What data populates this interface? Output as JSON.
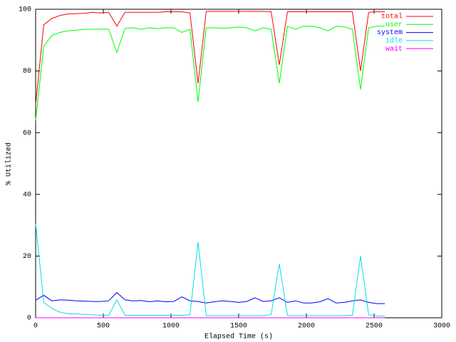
{
  "chart_data": {
    "type": "line",
    "x_label": "Elapsed Time (s)",
    "y_label": "% Utilized",
    "x": [
      0,
      60,
      120,
      180,
      240,
      300,
      360,
      420,
      480,
      540,
      600,
      660,
      720,
      780,
      840,
      900,
      960,
      1020,
      1080,
      1140,
      1200,
      1260,
      1320,
      1380,
      1440,
      1500,
      1560,
      1620,
      1680,
      1740,
      1800,
      1860,
      1920,
      1980,
      2040,
      2100,
      2160,
      2220,
      2280,
      2340,
      2400,
      2460,
      2520,
      2580
    ],
    "series": [
      {
        "name": "total",
        "color": "#ff0000",
        "values": [
          69,
          95,
          97,
          98,
          98.5,
          98.6,
          98.7,
          99,
          98.8,
          99,
          94.5,
          99,
          99,
          99,
          99,
          99,
          99.2,
          99.2,
          99.2,
          98.8,
          76,
          99.3,
          99.3,
          99.3,
          99.3,
          99.3,
          99.3,
          99.3,
          99.3,
          99.2,
          82,
          99.2,
          99.2,
          99.2,
          99.2,
          99.2,
          99.2,
          99.2,
          99.2,
          99.2,
          80,
          99,
          99.2,
          99.2
        ]
      },
      {
        "name": "user",
        "color": "#00ff00",
        "values": [
          64,
          88,
          91.5,
          92.5,
          93,
          93.2,
          93.5,
          93.5,
          93.6,
          93.5,
          86,
          93.8,
          94,
          93.5,
          94,
          93.7,
          94,
          94,
          92.5,
          93.5,
          70,
          94,
          94,
          93.8,
          94,
          94.3,
          94,
          93,
          94,
          93.5,
          76,
          94.5,
          93.5,
          94.5,
          94.5,
          94,
          93,
          94.5,
          94.3,
          93.5,
          74,
          94,
          94.5,
          94.5
        ]
      },
      {
        "name": "system",
        "color": "#0000ff",
        "values": [
          5.7,
          7.3,
          5.5,
          5.8,
          5.7,
          5.5,
          5.4,
          5.3,
          5.3,
          5.5,
          8.2,
          5.8,
          5.5,
          5.6,
          5.2,
          5.5,
          5.2,
          5.3,
          6.8,
          5.5,
          5.3,
          4.8,
          5.2,
          5.5,
          5.3,
          5.0,
          5.3,
          6.5,
          5.3,
          5.5,
          6.5,
          5.0,
          5.5,
          4.8,
          4.8,
          5.2,
          6.2,
          4.8,
          5.0,
          5.5,
          5.8,
          5.0,
          4.6,
          4.6
        ]
      },
      {
        "name": "idle",
        "color": "#00e0e0",
        "values": [
          30.5,
          5,
          3,
          1.8,
          1.3,
          1.2,
          1.1,
          1,
          0.8,
          0.8,
          5.8,
          0.8,
          0.8,
          0.8,
          0.8,
          0.8,
          0.8,
          0.8,
          0.8,
          1,
          24.5,
          0.7,
          0.7,
          0.7,
          0.7,
          0.7,
          0.7,
          0.7,
          0.7,
          1,
          17.5,
          0.7,
          0.7,
          0.7,
          0.7,
          0.7,
          0.7,
          0.7,
          0.7,
          0.8,
          20,
          1,
          0.5,
          0.5
        ]
      },
      {
        "name": "wait",
        "color": "#ff00ff",
        "values": [
          0,
          0,
          0,
          0,
          0,
          0,
          0,
          0,
          0,
          0,
          0,
          0,
          0,
          0,
          0,
          0,
          0,
          0,
          0,
          0,
          0,
          0,
          0,
          0,
          0,
          0,
          0,
          0,
          0,
          0,
          0,
          0,
          0,
          0,
          0,
          0,
          0,
          0,
          0,
          0,
          0,
          0,
          0,
          0
        ]
      }
    ],
    "xlim": [
      0,
      3000
    ],
    "xticks": [
      0,
      500,
      1000,
      1500,
      2000,
      2500,
      3000
    ],
    "ylim": [
      0,
      100
    ],
    "yticks": [
      0,
      20,
      40,
      60,
      80,
      100
    ],
    "grid": false,
    "legend": "top-right"
  }
}
